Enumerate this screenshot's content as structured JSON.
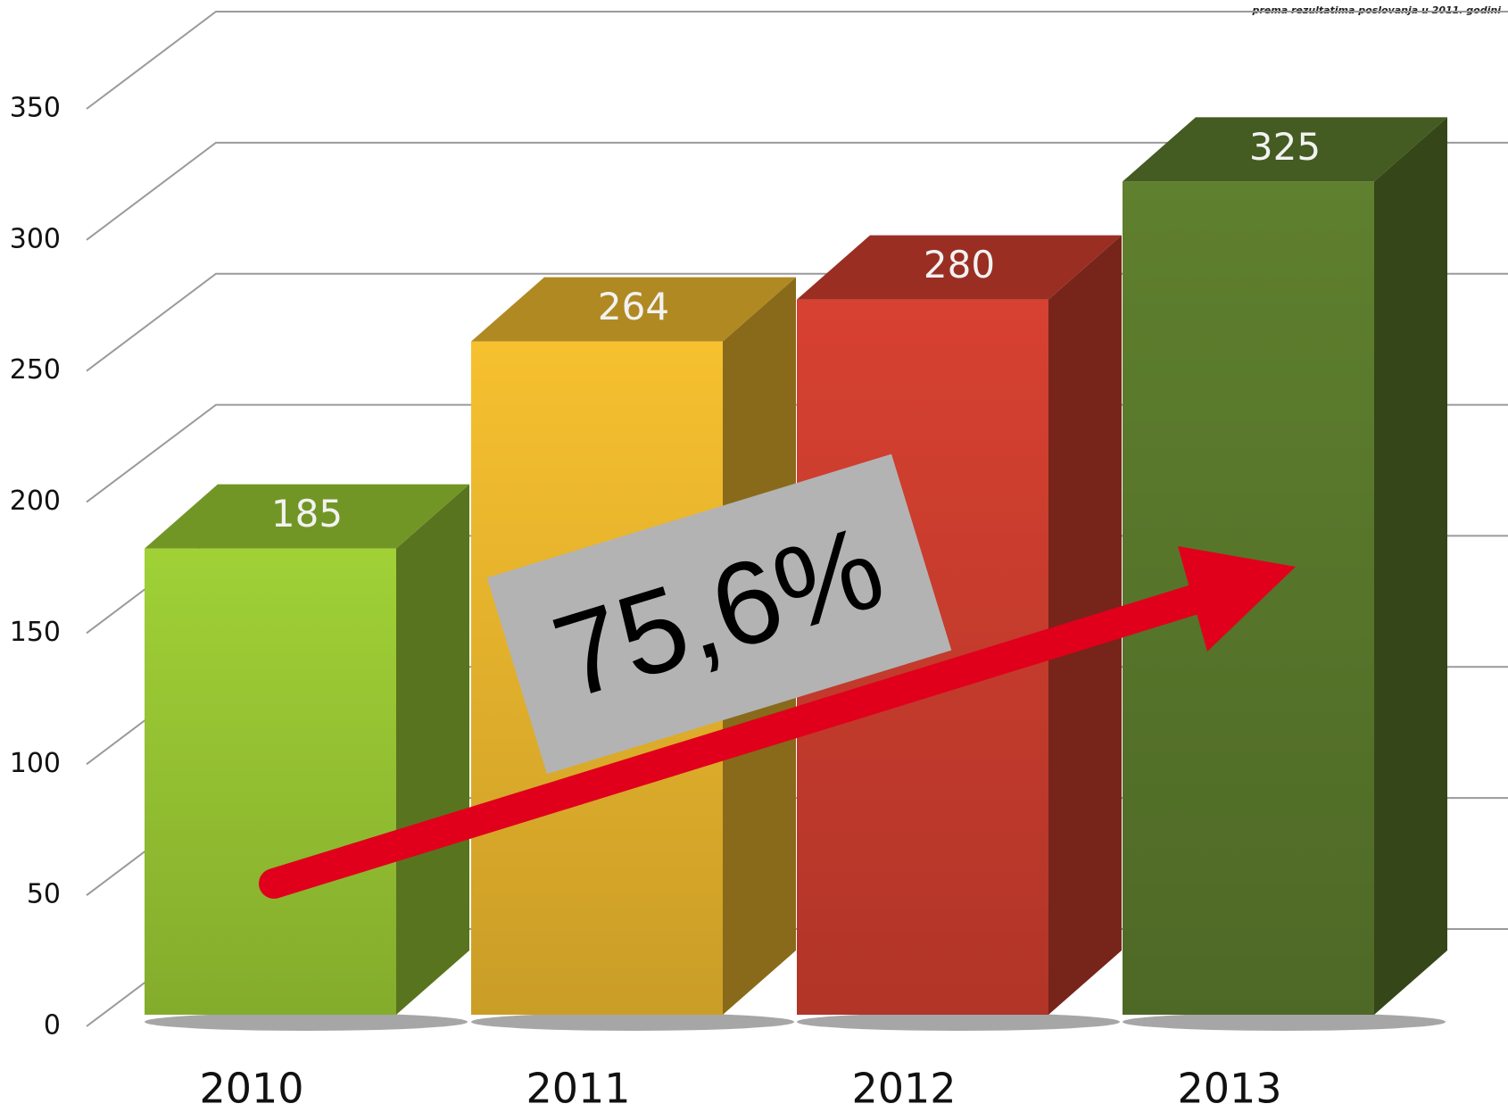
{
  "chart_data": {
    "type": "bar3d",
    "note": "prema rezultatima poslovanja u 2011. godini",
    "categories": [
      "2010",
      "2011",
      "2012",
      "2013"
    ],
    "values": [
      185,
      264,
      280,
      325
    ],
    "colors": [
      "#8fbb30",
      "#dcab2a",
      "#c03a2c",
      "#557229"
    ],
    "ylim": [
      0,
      350
    ],
    "yticks": [
      0,
      50,
      100,
      150,
      200,
      250,
      300,
      350
    ],
    "grid": true,
    "annotation": "75,6%"
  }
}
